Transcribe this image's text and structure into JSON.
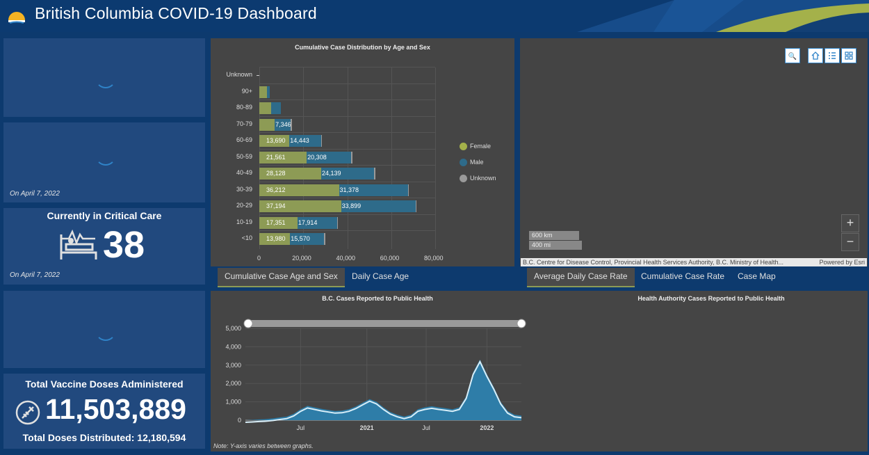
{
  "header": {
    "title": "British Columbia COVID-19 Dashboard"
  },
  "indicators": {
    "card2_date": "On April 7, 2022",
    "critical_care": {
      "title": "Currently in Critical Care",
      "value": "38",
      "date": "On April 7, 2022"
    },
    "vaccine": {
      "title": "Total Vaccine Doses Administered",
      "value": "11,503,889",
      "distributed": "Total Doses Distributed: 12,180,594"
    }
  },
  "age_chart": {
    "title": "Cumulative Case Distribution by Age and Sex",
    "categories": [
      "Unknown",
      "90+",
      "80-89",
      "70-79",
      "60-69",
      "50-59",
      "40-49",
      "30-39",
      "20-29",
      "10-19",
      "<10"
    ],
    "female": [
      0,
      3500,
      5500,
      7000,
      13690,
      21561,
      28128,
      36212,
      37194,
      17351,
      13980
    ],
    "male": [
      0,
      1100,
      4300,
      7346,
      14443,
      20308,
      24139,
      31378,
      33899,
      17914,
      15570
    ],
    "unknown": [
      0,
      0,
      0,
      200,
      200,
      300,
      400,
      500,
      500,
      200,
      100
    ],
    "female_labels": [
      "",
      "",
      "",
      "",
      "13,690",
      "21,561",
      "28,128",
      "36,212",
      "37,194",
      "17,351",
      "13,980"
    ],
    "male_labels": [
      "",
      "",
      "",
      "7,346",
      "14,443",
      "20,308",
      "24,139",
      "31,378",
      "33,899",
      "17,914",
      "15,570"
    ],
    "xticks": [
      "0",
      "20,000",
      "40,000",
      "60,000",
      "80,000"
    ],
    "xmax": 80000,
    "legend": [
      "Female",
      "Male",
      "Unknown"
    ],
    "colors": {
      "female": "#8d9b55",
      "male": "#2e6b8a",
      "unknown": "#9a9a9a"
    }
  },
  "tabs_left": [
    "Cumulative Case Age and Sex",
    "Daily Case Age"
  ],
  "tabs_right": [
    "Average Daily Case Rate",
    "Cumulative Case Rate",
    "Case Map"
  ],
  "map": {
    "scale_km": "600 km",
    "scale_mi": "400 mi",
    "attribution": "B.C. Centre for Disease Control, Provincial Health Services Authority, B.C. Ministry of Health...",
    "powered": "Powered by Esri",
    "zoom_in": "+",
    "zoom_out": "−",
    "search_icon": "🔍"
  },
  "cases_chart": {
    "title": "B.C. Cases Reported to Public Health",
    "yticks": [
      "0",
      "1,000",
      "2,000",
      "3,000",
      "4,000",
      "5,000"
    ],
    "ymax": 5000,
    "xticks": [
      "Jul",
      "2021",
      "Jul",
      "2022"
    ],
    "series_peaks": [
      0,
      20,
      40,
      60,
      100,
      150,
      200,
      350,
      600,
      780,
      700,
      620,
      560,
      500,
      520,
      600,
      750,
      950,
      1150,
      1000,
      700,
      450,
      300,
      200,
      300,
      600,
      700,
      760,
      700,
      650,
      600,
      700,
      1300,
      2600,
      3300,
      2500,
      1800,
      1000,
      500,
      300,
      250
    ],
    "color": "#2e7da8"
  },
  "ha_chart": {
    "title": "Health Authority Cases Reported to Public Health"
  },
  "note": "Note: Y-axis varies between graphs."
}
